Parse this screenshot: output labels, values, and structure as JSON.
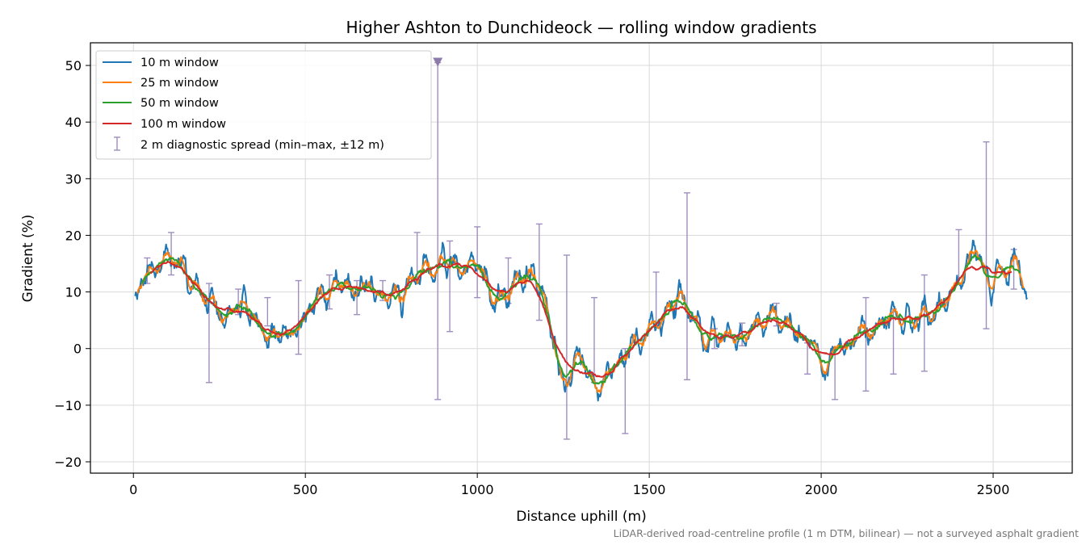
{
  "chart_data": {
    "type": "line",
    "title": "Higher Ashton to Dunchideock — rolling window gradients",
    "xlabel": "Distance uphill (m)",
    "ylabel": "Gradient (%)",
    "xlim": [
      -125,
      2730
    ],
    "ylim": [
      -22,
      54
    ],
    "xticks": [
      0,
      500,
      1000,
      1500,
      2000,
      2500
    ],
    "yticks": [
      -20,
      -10,
      0,
      10,
      20,
      30,
      40,
      50
    ],
    "xtick_labels": [
      "0",
      "500",
      "1000",
      "1500",
      "2000",
      "2500"
    ],
    "ytick_labels": [
      "−20",
      "−10",
      "0",
      "10",
      "20",
      "30",
      "40",
      "50"
    ],
    "grid": true,
    "legend_position": "upper-left",
    "footnote": "LiDAR-derived road-centreline profile (1 m DTM, bilinear) — not a surveyed asphalt gradient",
    "profile_knots": {
      "x": [
        5,
        30,
        60,
        100,
        140,
        180,
        230,
        260,
        300,
        350,
        420,
        460,
        520,
        580,
        650,
        700,
        760,
        820,
        880,
        950,
        1000,
        1040,
        1080,
        1120,
        1160,
        1180,
        1220,
        1250,
        1290,
        1320,
        1360,
        1400,
        1450,
        1520,
        1580,
        1620,
        1680,
        1740,
        1800,
        1870,
        1920,
        1960,
        2020,
        2080,
        2150,
        2220,
        2300,
        2350,
        2410,
        2450,
        2490,
        2530,
        2560,
        2600
      ],
      "y": [
        6,
        13,
        14.5,
        15.5,
        15,
        11,
        7,
        5.5,
        7,
        6,
        2,
        2.5,
        8,
        10,
        10,
        10.5,
        10,
        13,
        15,
        14,
        15,
        10,
        8.5,
        12,
        14,
        12,
        2,
        -5,
        -2,
        -4,
        -7,
        -4,
        0,
        5,
        9,
        6,
        1.5,
        2.5,
        3,
        5.5,
        4,
        1,
        -2,
        1,
        3.5,
        5.5,
        5,
        7,
        12,
        16,
        12,
        13,
        14.5,
        10
      ]
    },
    "series": [
      {
        "name": "10 m window",
        "window": 10,
        "color": "#1f77b4"
      },
      {
        "name": "25 m window",
        "window": 25,
        "color": "#ff7f0e"
      },
      {
        "name": "50 m window",
        "window": 50,
        "color": "#2ca02c"
      },
      {
        "name": "100 m window",
        "window": 100,
        "color": "#d62728"
      }
    ],
    "spread": {
      "name": "2 m diagnostic spread (min–max, ±12 m)",
      "color": "#9e8fbf",
      "points": [
        {
          "x": 40,
          "min": 11.5,
          "max": 16
        },
        {
          "x": 110,
          "min": 13,
          "max": 20.5
        },
        {
          "x": 220,
          "min": -6,
          "max": 11.5
        },
        {
          "x": 305,
          "min": 6,
          "max": 10.5
        },
        {
          "x": 390,
          "min": 4,
          "max": 9
        },
        {
          "x": 480,
          "min": -1,
          "max": 12
        },
        {
          "x": 570,
          "min": 7,
          "max": 13
        },
        {
          "x": 650,
          "min": 6,
          "max": 12
        },
        {
          "x": 725,
          "min": 8.5,
          "max": 12
        },
        {
          "x": 825,
          "min": 12,
          "max": 20.5
        },
        {
          "x": 885,
          "min": -9,
          "max": 50.5
        },
        {
          "x": 920,
          "min": 3,
          "max": 19
        },
        {
          "x": 1000,
          "min": 9,
          "max": 21.5
        },
        {
          "x": 1090,
          "min": 8,
          "max": 16
        },
        {
          "x": 1180,
          "min": 5,
          "max": 22
        },
        {
          "x": 1260,
          "min": -16,
          "max": 16.5
        },
        {
          "x": 1340,
          "min": -6,
          "max": 9
        },
        {
          "x": 1430,
          "min": -15,
          "max": 0
        },
        {
          "x": 1520,
          "min": 4,
          "max": 13.5
        },
        {
          "x": 1610,
          "min": -5.5,
          "max": 27.5
        },
        {
          "x": 1690,
          "min": 0,
          "max": 3.5
        },
        {
          "x": 1770,
          "min": 0.5,
          "max": 4.5
        },
        {
          "x": 1870,
          "min": 4,
          "max": 8
        },
        {
          "x": 1960,
          "min": -4.5,
          "max": 1
        },
        {
          "x": 2040,
          "min": -9,
          "max": -1
        },
        {
          "x": 2130,
          "min": -7.5,
          "max": 9
        },
        {
          "x": 2210,
          "min": -4.5,
          "max": 7
        },
        {
          "x": 2300,
          "min": -4,
          "max": 13
        },
        {
          "x": 2400,
          "min": 11.5,
          "max": 21
        },
        {
          "x": 2480,
          "min": 3.5,
          "max": 36.5
        },
        {
          "x": 2560,
          "min": 10.5,
          "max": 17.5
        }
      ]
    },
    "outlier_marker": {
      "x": 885,
      "y": 50.5,
      "color": "#8c7aab"
    }
  }
}
